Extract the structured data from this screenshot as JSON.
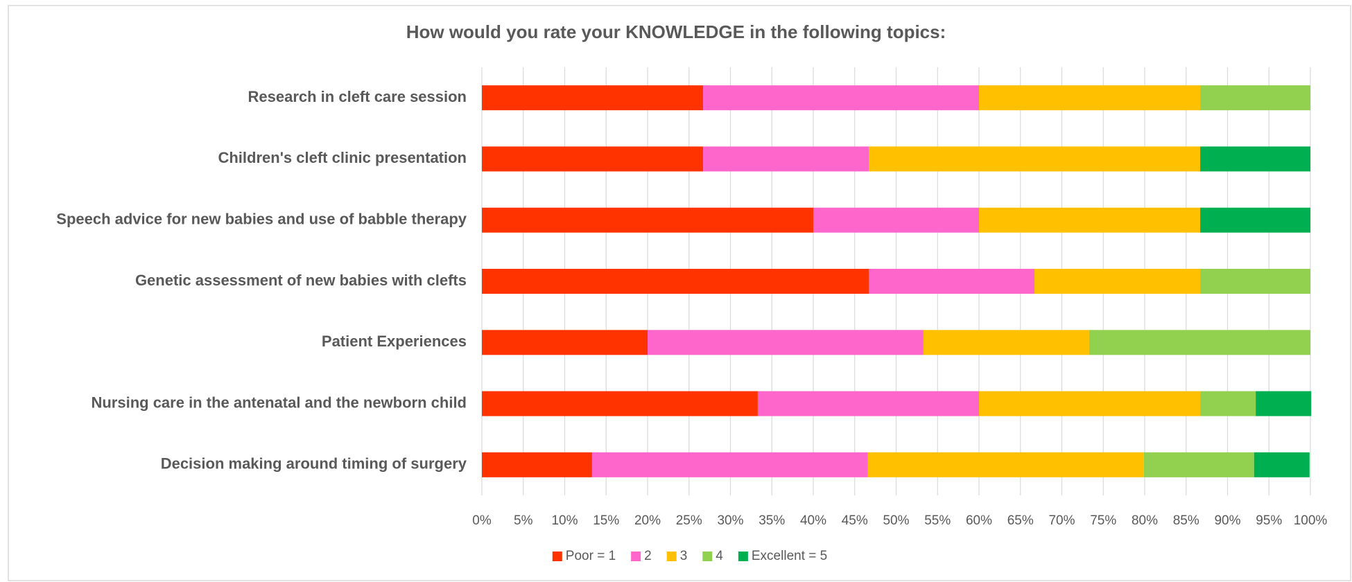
{
  "chart_data": {
    "type": "stacked-barh",
    "title": "How would you rate your KNOWLEDGE in the following topics:",
    "categories": [
      "Research in cleft care session",
      "Children's cleft clinic presentation",
      "Speech advice for new babies and use of babble therapy",
      "Genetic assessment of new babies with clefts",
      "Patient Experiences",
      "Nursing care in the antenatal and the newborn child",
      "Decision making around timing of surgery"
    ],
    "series": [
      {
        "name": "Poor = 1",
        "color": "#ff3300",
        "values": [
          26.7,
          26.7,
          40,
          46.7,
          20,
          33.3,
          13.3
        ]
      },
      {
        "name": "2",
        "color": "#ff66cc",
        "values": [
          33.3,
          20,
          20,
          20,
          33.3,
          26.7,
          33.3
        ]
      },
      {
        "name": "3",
        "color": "#ffc000",
        "values": [
          26.7,
          40,
          26.7,
          20,
          20,
          26.7,
          33.3
        ]
      },
      {
        "name": "4",
        "color": "#92d050",
        "values": [
          13.3,
          0,
          0,
          13.3,
          26.7,
          6.7,
          13.3
        ]
      },
      {
        "name": "Excellent = 5",
        "color": "#00b050",
        "values": [
          0,
          13.3,
          13.3,
          0,
          0,
          6.7,
          6.7
        ]
      }
    ],
    "xlim": [
      0,
      100
    ],
    "xticks": [
      {
        "value": 0,
        "label": "0%"
      },
      {
        "value": 5,
        "label": "5%"
      },
      {
        "value": 10,
        "label": "10%"
      },
      {
        "value": 15,
        "label": "15%"
      },
      {
        "value": 20,
        "label": "20%"
      },
      {
        "value": 25,
        "label": "25%"
      },
      {
        "value": 30,
        "label": "30%"
      },
      {
        "value": 35,
        "label": "35%"
      },
      {
        "value": 40,
        "label": "40%"
      },
      {
        "value": 45,
        "label": "45%"
      },
      {
        "value": 50,
        "label": "50%"
      },
      {
        "value": 55,
        "label": "55%"
      },
      {
        "value": 60,
        "label": "60%"
      },
      {
        "value": 65,
        "label": "65%"
      },
      {
        "value": 70,
        "label": "70%"
      },
      {
        "value": 75,
        "label": "75%"
      },
      {
        "value": 80,
        "label": "80%"
      },
      {
        "value": 85,
        "label": "85%"
      },
      {
        "value": 90,
        "label": "90%"
      },
      {
        "value": 95,
        "label": "95%"
      },
      {
        "value": 100,
        "label": "100%"
      }
    ],
    "grid": true,
    "legend": "bottom"
  }
}
